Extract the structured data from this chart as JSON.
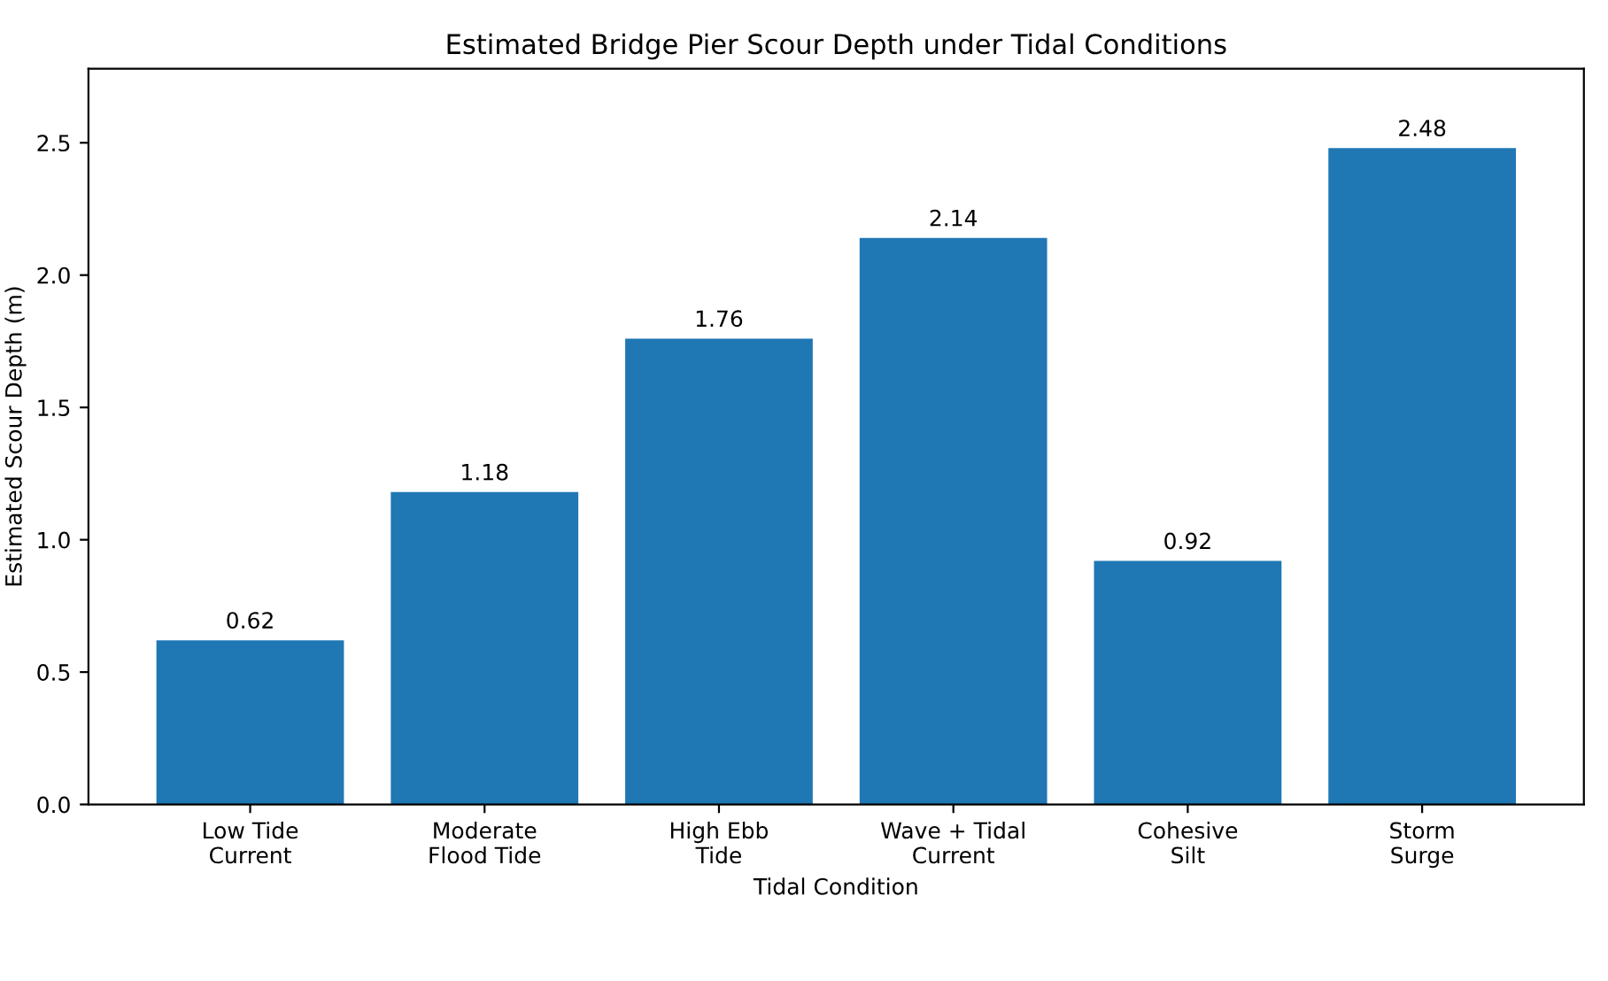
{
  "chart_data": {
    "type": "bar",
    "title": "Estimated Bridge Pier Scour Depth under Tidal Conditions",
    "xlabel": "Tidal Condition",
    "ylabel": "Estimated Scour Depth (m)",
    "categories": [
      "Low Tide\nCurrent",
      "Moderate\nFlood Tide",
      "High Ebb\nTide",
      "Wave + Tidal\nCurrent",
      "Cohesive\nSilt",
      "Storm\nSurge"
    ],
    "values": [
      0.62,
      1.18,
      1.76,
      2.14,
      0.92,
      2.48
    ],
    "color": "#1f77b4",
    "ylim": [
      0,
      2.78
    ],
    "yticks": [
      {
        "value": 0,
        "label": "0.0"
      },
      0.5,
      {
        "value": 1,
        "label": "1.0"
      },
      1.5,
      {
        "value": 2,
        "label": "2.0"
      },
      2.5
    ],
    "data_labels": true,
    "grid": false
  }
}
